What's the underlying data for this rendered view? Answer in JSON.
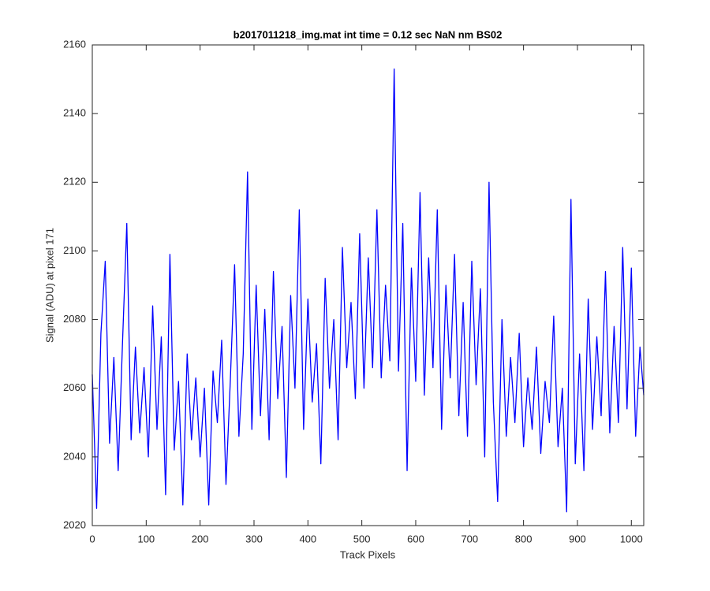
{
  "chart_data": {
    "type": "line",
    "title": "b2017011218_img.mat int time = 0.12 sec  NaN nm BS02",
    "x_label": "Track Pixels",
    "y_label": "Signal (ADU) at pixel 171",
    "color": "#0000ff",
    "x": [
      0,
      8,
      16,
      24,
      32,
      40,
      48,
      56,
      64,
      72,
      80,
      88,
      96,
      104,
      112,
      120,
      128,
      136,
      144,
      152,
      160,
      168,
      176,
      184,
      192,
      200,
      208,
      216,
      224,
      232,
      240,
      248,
      256,
      264,
      272,
      280,
      288,
      296,
      304,
      312,
      320,
      328,
      336,
      344,
      352,
      360,
      368,
      376,
      384,
      392,
      400,
      408,
      416,
      424,
      432,
      440,
      448,
      456,
      464,
      472,
      480,
      488,
      496,
      504,
      512,
      520,
      528,
      536,
      544,
      552,
      560,
      568,
      576,
      584,
      592,
      600,
      608,
      616,
      624,
      632,
      640,
      648,
      656,
      664,
      672,
      680,
      688,
      696,
      704,
      712,
      720,
      728,
      736,
      744,
      752,
      760,
      768,
      776,
      784,
      792,
      800,
      808,
      816,
      824,
      832,
      840,
      848,
      856,
      864,
      872,
      880,
      888,
      896,
      904,
      912,
      920,
      928,
      936,
      944,
      952,
      960,
      968,
      976,
      984,
      992,
      1000,
      1008,
      1016,
      1023
    ],
    "values": [
      2064,
      2025,
      2076,
      2097,
      2044,
      2069,
      2036,
      2073,
      2108,
      2045,
      2072,
      2047,
      2066,
      2040,
      2084,
      2048,
      2075,
      2029,
      2099,
      2042,
      2062,
      2026,
      2070,
      2045,
      2063,
      2040,
      2060,
      2026,
      2065,
      2050,
      2074,
      2032,
      2062,
      2096,
      2046,
      2070,
      2123,
      2048,
      2090,
      2052,
      2083,
      2045,
      2094,
      2057,
      2078,
      2034,
      2087,
      2060,
      2112,
      2048,
      2086,
      2056,
      2073,
      2038,
      2092,
      2060,
      2080,
      2045,
      2101,
      2066,
      2085,
      2057,
      2105,
      2060,
      2098,
      2066,
      2112,
      2063,
      2090,
      2068,
      2153,
      2065,
      2108,
      2036,
      2095,
      2062,
      2117,
      2058,
      2098,
      2066,
      2112,
      2048,
      2090,
      2063,
      2099,
      2052,
      2085,
      2046,
      2097,
      2061,
      2089,
      2040,
      2120,
      2056,
      2027,
      2080,
      2046,
      2069,
      2050,
      2076,
      2043,
      2063,
      2048,
      2072,
      2041,
      2062,
      2050,
      2081,
      2043,
      2060,
      2024,
      2115,
      2038,
      2070,
      2036,
      2086,
      2048,
      2075,
      2052,
      2094,
      2047,
      2078,
      2050,
      2101,
      2054,
      2095,
      2046,
      2072,
      2058
    ],
    "xlim": [
      0,
      1023
    ],
    "ylim": [
      2020,
      2160
    ],
    "xticks": [
      0,
      100,
      200,
      300,
      400,
      500,
      600,
      700,
      800,
      900,
      1000
    ],
    "yticks": [
      2020,
      2040,
      2060,
      2080,
      2100,
      2120,
      2140,
      2160
    ],
    "grid": false
  }
}
